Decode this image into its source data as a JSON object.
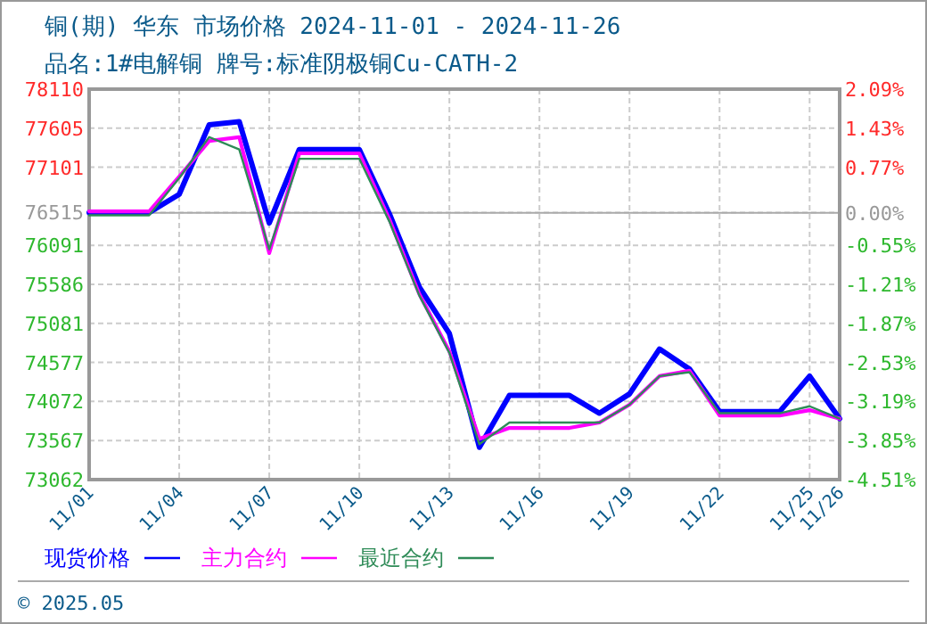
{
  "chart_data": {
    "type": "line",
    "title": "铜(期) 华东 市场价格 2024-11-01 - 2024-11-26",
    "subtitle": "品名:1#电解铜 牌号:标准阴极铜Cu-CATH-2",
    "x": [
      "2024-11-01",
      "2024-11-02",
      "2024-11-03",
      "2024-11-04",
      "2024-11-05",
      "2024-11-06",
      "2024-11-07",
      "2024-11-08",
      "2024-11-09",
      "2024-11-10",
      "2024-11-11",
      "2024-11-12",
      "2024-11-13",
      "2024-11-14",
      "2024-11-15",
      "2024-11-16",
      "2024-11-17",
      "2024-11-18",
      "2024-11-19",
      "2024-11-20",
      "2024-11-21",
      "2024-11-22",
      "2024-11-23",
      "2024-11-24",
      "2024-11-25",
      "2024-11-26"
    ],
    "series": [
      {
        "name": "现货价格",
        "color": "#0000ff",
        "values": [
          76515,
          76515,
          76515,
          76750,
          77650,
          77690,
          76380,
          77330,
          77330,
          77330,
          76500,
          75550,
          74950,
          73480,
          74150,
          74150,
          74150,
          73920,
          74170,
          74750,
          74490,
          73940,
          73940,
          73940,
          74400,
          73850
        ]
      },
      {
        "name": "主力合约",
        "color": "#ff00ff",
        "values": [
          76530,
          76530,
          76530,
          76980,
          77440,
          77490,
          75990,
          77280,
          77280,
          77280,
          76430,
          75460,
          74720,
          73590,
          73730,
          73730,
          73730,
          73800,
          74030,
          74400,
          74470,
          73890,
          73890,
          73890,
          73960,
          73850
        ]
      },
      {
        "name": "最近合约",
        "color": "#2e8b57",
        "values": [
          76480,
          76480,
          76480,
          76960,
          77490,
          77330,
          76040,
          77210,
          77210,
          77210,
          76400,
          75440,
          74700,
          73520,
          73800,
          73800,
          73800,
          73800,
          74030,
          74400,
          74450,
          73920,
          73920,
          73920,
          74010,
          73850
        ]
      }
    ],
    "xlim": [
      "2024-11-01",
      "2024-11-26"
    ],
    "xticks": [
      {
        "value": "2024-11-01",
        "label": "11/01"
      },
      {
        "value": "2024-11-04",
        "label": "11/04"
      },
      {
        "value": "2024-11-07",
        "label": "11/07"
      },
      {
        "value": "2024-11-10",
        "label": "11/10"
      },
      {
        "value": "2024-11-13",
        "label": "11/13"
      },
      {
        "value": "2024-11-16",
        "label": "11/16"
      },
      {
        "value": "2024-11-19",
        "label": "11/19"
      },
      {
        "value": "2024-11-22",
        "label": "11/22"
      },
      {
        "value": "2024-11-25",
        "label": "11/25"
      },
      {
        "value": "2024-11-26",
        "label": "11/26"
      }
    ],
    "ylim": [
      73062,
      78110
    ],
    "yticks": [
      73062,
      73567,
      74072,
      74577,
      75081,
      75586,
      76091,
      76515,
      77101,
      77605,
      78110
    ],
    "y2lim": [
      -4.51,
      2.09
    ],
    "y2ticks": [
      {
        "value": -4.51,
        "label": "-4.51%"
      },
      {
        "value": -3.85,
        "label": "-3.85%"
      },
      {
        "value": -3.19,
        "label": "-3.19%"
      },
      {
        "value": -2.53,
        "label": "-2.53%"
      },
      {
        "value": -1.87,
        "label": "-1.87%"
      },
      {
        "value": -1.21,
        "label": "-1.21%"
      },
      {
        "value": -0.55,
        "label": "-0.55%"
      },
      {
        "value": 0,
        "label": "0.00%"
      },
      {
        "value": 0.77,
        "label": "0.77%"
      },
      {
        "value": 1.43,
        "label": "1.43%"
      },
      {
        "value": 2.09,
        "label": "2.09%"
      }
    ],
    "grid": true,
    "legend": "bottom",
    "marker": "none",
    "line_style": "solid",
    "annotations": [
      "© 2025.05"
    ]
  }
}
